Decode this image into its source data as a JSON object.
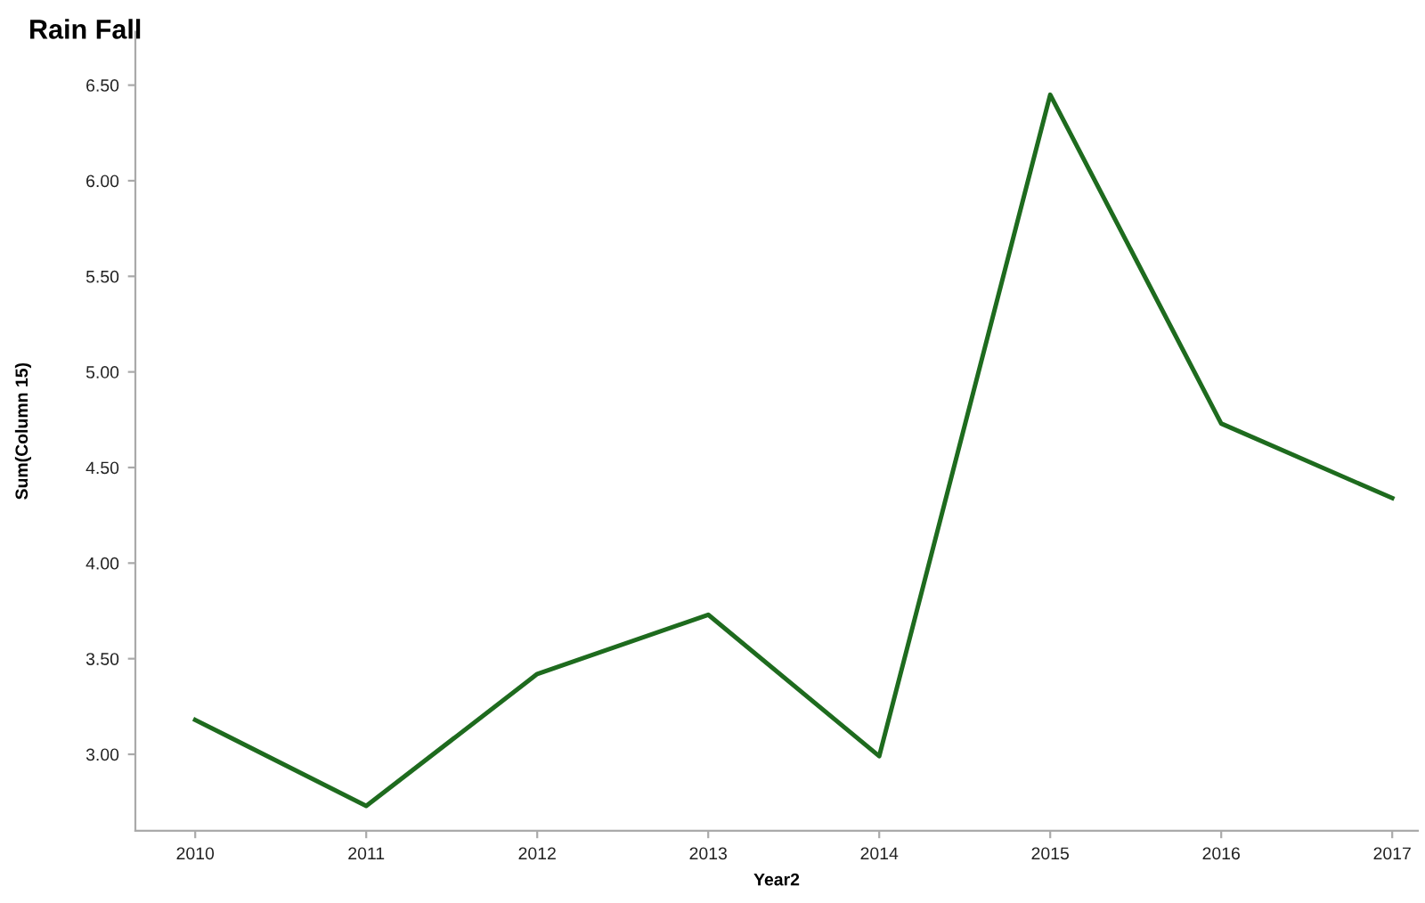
{
  "chart_data": {
    "type": "line",
    "title": "Rain Fall",
    "xlabel": "Year2",
    "ylabel": "Sum(Column 15)",
    "categories": [
      "2010",
      "2011",
      "2012",
      "2013",
      "2014",
      "2015",
      "2016",
      "2017"
    ],
    "series": [
      {
        "color": "#1e6b1e",
        "values": [
          3.18,
          2.73,
          3.42,
          3.73,
          2.99,
          6.45,
          4.73,
          4.34
        ]
      }
    ],
    "ylim": [
      2.6,
      6.78
    ],
    "yticks": [
      {
        "value": 3.0,
        "label": "3.00"
      },
      {
        "value": 3.5,
        "label": "3.50"
      },
      {
        "value": 4.0,
        "label": "4.00"
      },
      {
        "value": 4.5,
        "label": "4.50"
      },
      {
        "value": 5.0,
        "label": "5.00"
      },
      {
        "value": 5.5,
        "label": "5.50"
      },
      {
        "value": 6.0,
        "label": "6.00"
      },
      {
        "value": 6.5,
        "label": "6.50"
      }
    ],
    "grid": false,
    "marker": "none",
    "line_style": "solid",
    "legend": false
  }
}
